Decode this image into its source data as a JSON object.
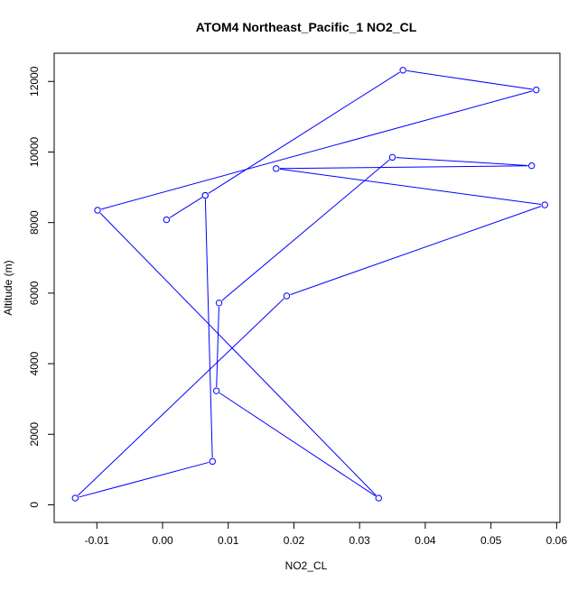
{
  "chart_data": {
    "type": "line",
    "title": "ATOM4 Northeast_Pacific_1 NO2_CL",
    "xlabel": "NO2_CL",
    "ylabel": "Altitude (m)",
    "xlim": [
      -0.0165,
      0.0605
    ],
    "ylim": [
      -500,
      12800
    ],
    "x_ticks": [
      -0.01,
      0.0,
      0.01,
      0.02,
      0.03,
      0.04,
      0.05,
      0.06
    ],
    "x_tick_labels": [
      "-0.01",
      "0.00",
      "0.01",
      "0.02",
      "0.03",
      "0.04",
      "0.05",
      "0.06"
    ],
    "y_ticks": [
      0,
      2000,
      4000,
      6000,
      8000,
      10000,
      12000
    ],
    "y_tick_labels": [
      "0",
      "2000",
      "4000",
      "6000",
      "8000",
      "10000",
      "12000"
    ],
    "grid": false,
    "legend": "none",
    "series": [
      {
        "color": "#0000ff",
        "marker": "open-circle",
        "points": [
          {
            "x": 0.0006,
            "y": 8080
          },
          {
            "x": 0.0065,
            "y": 8770
          },
          {
            "x": 0.0366,
            "y": 12320
          },
          {
            "x": 0.0569,
            "y": 11760
          },
          {
            "x": -0.0099,
            "y": 8350
          },
          {
            "x": 0.0329,
            "y": 190
          },
          {
            "x": 0.0082,
            "y": 3230
          },
          {
            "x": 0.0086,
            "y": 5720
          },
          {
            "x": 0.035,
            "y": 9850
          },
          {
            "x": 0.0562,
            "y": 9610
          },
          {
            "x": 0.0173,
            "y": 9530
          },
          {
            "x": 0.0582,
            "y": 8500
          },
          {
            "x": 0.0189,
            "y": 5920
          },
          {
            "x": -0.0133,
            "y": 190
          },
          {
            "x": 0.0076,
            "y": 1230
          },
          {
            "x": 0.0065,
            "y": 8770
          }
        ]
      }
    ]
  }
}
